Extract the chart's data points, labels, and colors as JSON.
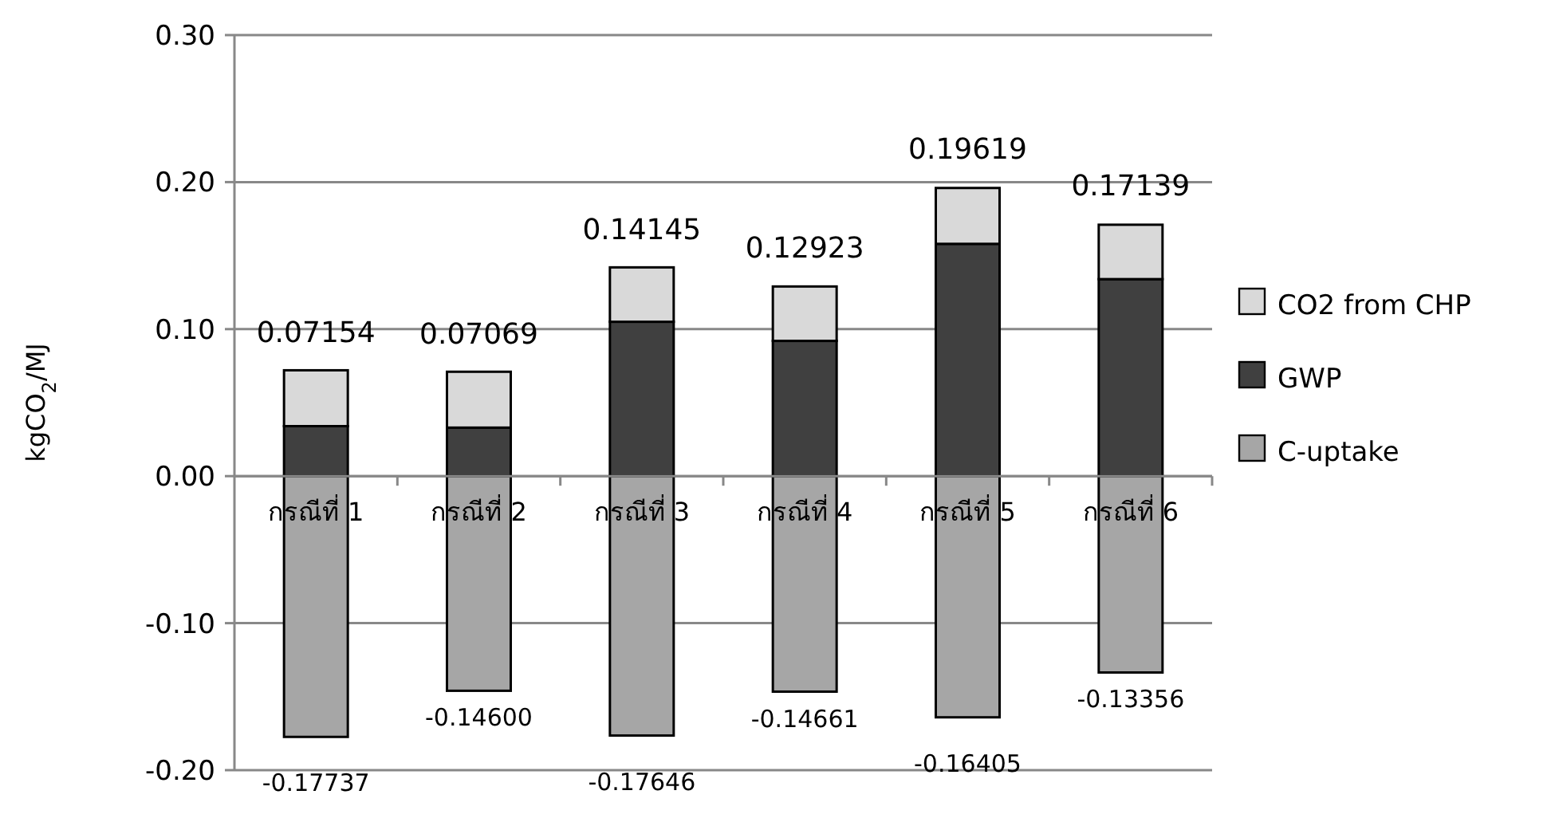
{
  "chart_data": {
    "type": "bar",
    "stacked": true,
    "ylabel": "kgCO$_{2}$/MJ",
    "categories": [
      "กรณีที่ 1",
      "กรณีที่ 2",
      "กรณีที่ 3",
      "กรณีที่ 4",
      "กรณีที่ 5",
      "กรณีที่ 6"
    ],
    "series": [
      {
        "name": "C-uptake",
        "color": "#a6a6a6",
        "values": [
          -0.17737,
          -0.146,
          -0.17646,
          -0.14661,
          -0.16405,
          -0.13356
        ],
        "value_labels": [
          "-0.17737",
          "-0.14600",
          "-0.17646",
          "-0.14661",
          "-0.16405",
          "-0.13356"
        ]
      },
      {
        "name": "GWP",
        "color": "#404040",
        "values": [
          0.034,
          0.033,
          0.105,
          0.092,
          0.158,
          0.134
        ]
      },
      {
        "name": "CO2 from CHP",
        "color": "#d9d9d9",
        "values": [
          0.038,
          0.038,
          0.037,
          0.037,
          0.038,
          0.037
        ]
      }
    ],
    "annotations": [
      {
        "text": "0.07154",
        "x": "กรณีที่ 1",
        "y": 0.07154
      },
      {
        "text": "0.07069",
        "x": "กรณีที่ 2",
        "y": 0.07069
      },
      {
        "text": "0.14145",
        "x": "กรณีที่ 3",
        "y": 0.14145
      },
      {
        "text": "0.12923",
        "x": "กรณีที่ 4",
        "y": 0.12923
      },
      {
        "text": "0.19619",
        "x": "กรณีที่ 5",
        "y": 0.19619
      },
      {
        "text": "0.17139",
        "x": "กรณีที่ 6",
        "y": 0.17139
      }
    ],
    "ylim": [
      -0.2,
      0.3
    ],
    "yticks": [
      {
        "value": -0.2,
        "label": "-0.20"
      },
      {
        "value": -0.1,
        "label": "-0.10"
      },
      {
        "value": 0,
        "label": "0.00"
      },
      {
        "value": 0.1,
        "label": "0.10"
      },
      {
        "value": 0.2,
        "label": "0.20"
      },
      {
        "value": 0.3,
        "label": "0.30"
      }
    ],
    "grid": "y",
    "legend": "right"
  }
}
